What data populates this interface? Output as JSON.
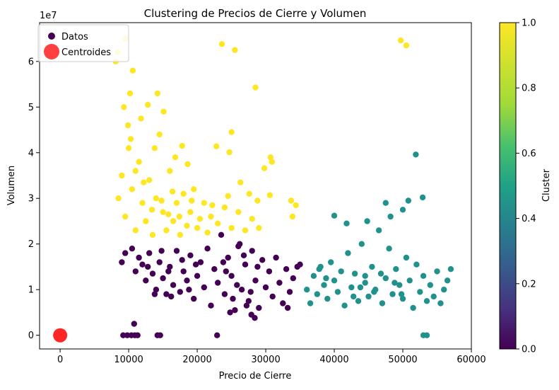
{
  "chart_data": {
    "type": "scatter",
    "title": "Clustering de Precios de Cierre y Volumen",
    "xlabel": "Precio de Cierre",
    "ylabel": "Volumen",
    "y_offset_label": "1e7",
    "xlim": [
      -3000,
      60000
    ],
    "ylim": [
      -0.3,
      6.85
    ],
    "x_ticks": [
      0,
      10000,
      20000,
      30000,
      40000,
      50000,
      60000
    ],
    "x_tick_labels": [
      "0",
      "10000",
      "20000",
      "30000",
      "40000",
      "50000",
      "60000"
    ],
    "y_ticks": [
      0,
      1,
      2,
      3,
      4,
      5,
      6
    ],
    "y_tick_labels": [
      "0",
      "1",
      "2",
      "3",
      "4",
      "5",
      "6"
    ],
    "grid": false,
    "legend": {
      "placement": "top-left",
      "entries": [
        {
          "label": "Datos",
          "color": "#440154"
        },
        {
          "label": "Centroides",
          "color": "#ff0000"
        }
      ]
    },
    "colorbar": {
      "label": "Cluster",
      "range": [
        0.0,
        1.0
      ],
      "ticks": [
        0.0,
        0.2,
        0.4,
        0.6,
        0.8,
        1.0
      ],
      "tick_labels": [
        "0.0",
        "0.2",
        "0.4",
        "0.6",
        "0.8",
        "1.0"
      ]
    },
    "clusters": [
      {
        "cluster": 0,
        "color": "#440154"
      },
      {
        "cluster": 0.5,
        "color": "#21918c"
      },
      {
        "cluster": 1,
        "color": "#fde725"
      }
    ],
    "points": [
      [
        9000,
        1.6,
        0
      ],
      [
        9500,
        1.8,
        0
      ],
      [
        10500,
        1.9,
        0
      ],
      [
        11000,
        1.4,
        0
      ],
      [
        11500,
        1.7,
        0
      ],
      [
        12000,
        1.55,
        0
      ],
      [
        12500,
        1.2,
        0
      ],
      [
        13000,
        1.8,
        0
      ],
      [
        13500,
        1.35,
        0
      ],
      [
        14000,
        1.0,
        0
      ],
      [
        14500,
        1.6,
        0
      ],
      [
        15000,
        1.25,
        0
      ],
      [
        15500,
        0.9,
        0
      ],
      [
        16000,
        1.5,
        0
      ],
      [
        16500,
        1.1,
        0
      ],
      [
        17000,
        1.85,
        0
      ],
      [
        17500,
        0.95,
        0
      ],
      [
        18000,
        1.4,
        0
      ],
      [
        18500,
        1.2,
        0
      ],
      [
        19000,
        1.75,
        0
      ],
      [
        19500,
        0.8,
        0
      ],
      [
        20000,
        1.3,
        0
      ],
      [
        20500,
        1.6,
        0
      ],
      [
        21000,
        1.05,
        0
      ],
      [
        21500,
        1.9,
        0
      ],
      [
        22000,
        0.65,
        0
      ],
      [
        22500,
        1.45,
        0
      ],
      [
        23000,
        1.15,
        0
      ],
      [
        23500,
        2.2,
        0
      ],
      [
        24000,
        0.9,
        0
      ],
      [
        24500,
        1.7,
        0
      ],
      [
        25000,
        1.3,
        0
      ],
      [
        25500,
        0.55,
        0
      ],
      [
        26000,
        1.95,
        0
      ],
      [
        26500,
        1.0,
        0
      ],
      [
        27000,
        1.55,
        0
      ],
      [
        27500,
        0.75,
        0
      ],
      [
        28000,
        1.85,
        0
      ],
      [
        28500,
        1.2,
        0
      ],
      [
        29000,
        0.6,
        0
      ],
      [
        29500,
        1.65,
        0
      ],
      [
        30000,
        1.05,
        0
      ],
      [
        30500,
        1.4,
        0
      ],
      [
        31000,
        0.85,
        0
      ],
      [
        31500,
        1.7,
        0
      ],
      [
        32000,
        1.15,
        0
      ],
      [
        32500,
        0.7,
        0
      ],
      [
        33000,
        1.45,
        0
      ],
      [
        33500,
        0.95,
        0
      ],
      [
        34000,
        1.25,
        0
      ],
      [
        24200,
        1.4,
        0
      ],
      [
        25800,
        1.1,
        0
      ],
      [
        26800,
        1.75,
        0
      ],
      [
        27800,
        0.95,
        0
      ],
      [
        28800,
        1.5,
        0
      ],
      [
        25200,
        0.8,
        0
      ],
      [
        23800,
        1.6,
        0
      ],
      [
        26200,
        2.0,
        0
      ],
      [
        27200,
        0.65,
        0
      ],
      [
        24800,
        0.5,
        0
      ],
      [
        16200,
        0.85,
        0
      ],
      [
        17800,
        1.65,
        0
      ],
      [
        18800,
        1.0,
        0
      ],
      [
        19800,
        1.55,
        0
      ],
      [
        14800,
        1.85,
        0
      ],
      [
        15800,
        1.4,
        0
      ],
      [
        13800,
        0.9,
        0
      ],
      [
        12800,
        1.5,
        0
      ],
      [
        9200,
        0,
        0
      ],
      [
        9800,
        0,
        0
      ],
      [
        10400,
        0,
        0
      ],
      [
        10900,
        0,
        0
      ],
      [
        11300,
        0,
        0
      ],
      [
        14200,
        0,
        0
      ],
      [
        14600,
        0,
        0
      ],
      [
        22900,
        0,
        0
      ],
      [
        10800,
        0.25,
        0
      ],
      [
        27900,
        0.45,
        0
      ],
      [
        28400,
        0.38,
        0
      ],
      [
        35000,
        1.55,
        0
      ],
      [
        34600,
        1.5,
        0
      ],
      [
        33200,
        0.6,
        0
      ],
      [
        36000,
        1.0,
        0.5
      ],
      [
        36500,
        0.7,
        0.5
      ],
      [
        37000,
        1.3,
        0.5
      ],
      [
        37500,
        0.9,
        0.5
      ],
      [
        38000,
        1.5,
        0.5
      ],
      [
        38500,
        1.1,
        0.5
      ],
      [
        39000,
        0.8,
        0.5
      ],
      [
        39500,
        1.6,
        0.5
      ],
      [
        40000,
        1.2,
        0.5
      ],
      [
        40500,
        0.95,
        0.5
      ],
      [
        41000,
        1.4,
        0.5
      ],
      [
        41500,
        0.65,
        0.5
      ],
      [
        42000,
        1.8,
        0.5
      ],
      [
        42500,
        1.05,
        0.5
      ],
      [
        43000,
        1.35,
        0.5
      ],
      [
        43500,
        0.75,
        0.5
      ],
      [
        44000,
        2.0,
        0.5
      ],
      [
        44500,
        1.15,
        0.5
      ],
      [
        45000,
        0.85,
        0.5
      ],
      [
        45500,
        1.5,
        0.5
      ],
      [
        46000,
        1.0,
        0.5
      ],
      [
        46500,
        2.3,
        0.5
      ],
      [
        47000,
        0.7,
        0.5
      ],
      [
        47500,
        1.25,
        0.5
      ],
      [
        48000,
        1.9,
        0.5
      ],
      [
        48500,
        0.9,
        0.5
      ],
      [
        49000,
        1.45,
        0.5
      ],
      [
        49500,
        1.1,
        0.5
      ],
      [
        50000,
        0.8,
        0.5
      ],
      [
        50500,
        1.7,
        0.5
      ],
      [
        51000,
        1.2,
        0.5
      ],
      [
        51500,
        0.6,
        0.5
      ],
      [
        52000,
        1.55,
        0.5
      ],
      [
        52500,
        0.95,
        0.5
      ],
      [
        53000,
        1.3,
        0.5
      ],
      [
        53500,
        0.75,
        0.5
      ],
      [
        54000,
        1.1,
        0.5
      ],
      [
        54500,
        0.85,
        0.5
      ],
      [
        55000,
        1.4,
        0.5
      ],
      [
        55500,
        0.7,
        0.5
      ],
      [
        56000,
        1.0,
        0.5
      ],
      [
        56500,
        1.2,
        0.5
      ],
      [
        57000,
        1.45,
        0.5
      ],
      [
        40000,
        2.62,
        0.5
      ],
      [
        41800,
        2.45,
        0.5
      ],
      [
        47500,
        2.9,
        0.5
      ],
      [
        48200,
        2.6,
        0.5
      ],
      [
        50000,
        2.75,
        0.5
      ],
      [
        50800,
        2.95,
        0.5
      ],
      [
        52900,
        3.02,
        0.5
      ],
      [
        51900,
        3.96,
        0.5
      ],
      [
        44800,
        2.5,
        0.5
      ],
      [
        53000,
        0,
        0.5
      ],
      [
        53500,
        0,
        0.5
      ],
      [
        44500,
        1.3,
        0.5
      ],
      [
        45800,
        0.95,
        0.5
      ],
      [
        46800,
        1.35,
        0.5
      ],
      [
        43800,
        1.05,
        0.5
      ],
      [
        42800,
        0.85,
        0.5
      ],
      [
        48800,
        1.15,
        0.5
      ],
      [
        49800,
        0.9,
        0.5
      ],
      [
        38800,
        1.25,
        0.5
      ],
      [
        37800,
        1.45,
        0.5
      ],
      [
        8500,
        3.0,
        1
      ],
      [
        9000,
        3.5,
        1
      ],
      [
        9500,
        2.6,
        1
      ],
      [
        10000,
        4.1,
        1
      ],
      [
        10500,
        3.2,
        1
      ],
      [
        11000,
        2.3,
        1
      ],
      [
        11500,
        3.8,
        1
      ],
      [
        12000,
        2.9,
        1
      ],
      [
        12500,
        2.5,
        1
      ],
      [
        13000,
        3.4,
        1
      ],
      [
        13500,
        2.2,
        1
      ],
      [
        14000,
        3.0,
        1
      ],
      [
        14500,
        4.4,
        1
      ],
      [
        15000,
        2.7,
        1
      ],
      [
        15500,
        2.3,
        1
      ],
      [
        16000,
        3.6,
        1
      ],
      [
        16500,
        2.5,
        1
      ],
      [
        17000,
        2.9,
        1
      ],
      [
        17500,
        2.2,
        1
      ],
      [
        18000,
        3.1,
        1
      ],
      [
        18500,
        2.4,
        1
      ],
      [
        19000,
        2.7,
        1
      ],
      [
        19500,
        3.2,
        1
      ],
      [
        20000,
        2.35,
        1
      ],
      [
        21000,
        2.9,
        1
      ],
      [
        21500,
        2.25,
        1
      ],
      [
        22000,
        2.6,
        1
      ],
      [
        23000,
        2.45,
        1
      ],
      [
        24000,
        2.8,
        1
      ],
      [
        25000,
        2.35,
        1
      ],
      [
        26000,
        2.7,
        1
      ],
      [
        27000,
        2.3,
        1
      ],
      [
        28000,
        2.55,
        1
      ],
      [
        29000,
        2.35,
        1
      ],
      [
        8100,
        6.0,
        1
      ],
      [
        8400,
        6.2,
        1
      ],
      [
        9500,
        6.5,
        1
      ],
      [
        9300,
        5.0,
        1
      ],
      [
        10200,
        5.3,
        1
      ],
      [
        10600,
        5.8,
        1
      ],
      [
        11800,
        4.75,
        1
      ],
      [
        12800,
        5.05,
        1
      ],
      [
        14200,
        5.3,
        1
      ],
      [
        15100,
        4.9,
        1
      ],
      [
        9900,
        4.6,
        1
      ],
      [
        10300,
        4.3,
        1
      ],
      [
        13800,
        4.1,
        1
      ],
      [
        16800,
        3.9,
        1
      ],
      [
        17800,
        4.15,
        1
      ],
      [
        18600,
        3.75,
        1
      ],
      [
        23600,
        6.38,
        1
      ],
      [
        25500,
        6.25,
        1
      ],
      [
        28500,
        5.43,
        1
      ],
      [
        25000,
        4.45,
        1
      ],
      [
        22800,
        4.14,
        1
      ],
      [
        24700,
        4.01,
        1
      ],
      [
        30700,
        3.9,
        1
      ],
      [
        30900,
        3.8,
        1
      ],
      [
        29800,
        3.66,
        1
      ],
      [
        30600,
        3.07,
        1
      ],
      [
        33700,
        2.95,
        1
      ],
      [
        34400,
        2.85,
        1
      ],
      [
        33900,
        2.6,
        1
      ],
      [
        49700,
        6.46,
        1
      ],
      [
        50500,
        6.35,
        1
      ],
      [
        11000,
        3.6,
        1
      ],
      [
        12200,
        3.35,
        1
      ],
      [
        13400,
        2.75,
        1
      ],
      [
        14800,
        2.95,
        1
      ],
      [
        15800,
        2.65,
        1
      ],
      [
        16400,
        3.15,
        1
      ],
      [
        17400,
        2.6,
        1
      ],
      [
        19200,
        2.95,
        1
      ],
      [
        20400,
        2.55,
        1
      ],
      [
        22200,
        2.85,
        1
      ],
      [
        24500,
        3.05,
        1
      ],
      [
        26300,
        3.35,
        1
      ],
      [
        27600,
        3.1,
        1
      ],
      [
        28800,
        2.95,
        1
      ]
    ],
    "centroids": [
      [
        0,
        0
      ]
    ]
  }
}
